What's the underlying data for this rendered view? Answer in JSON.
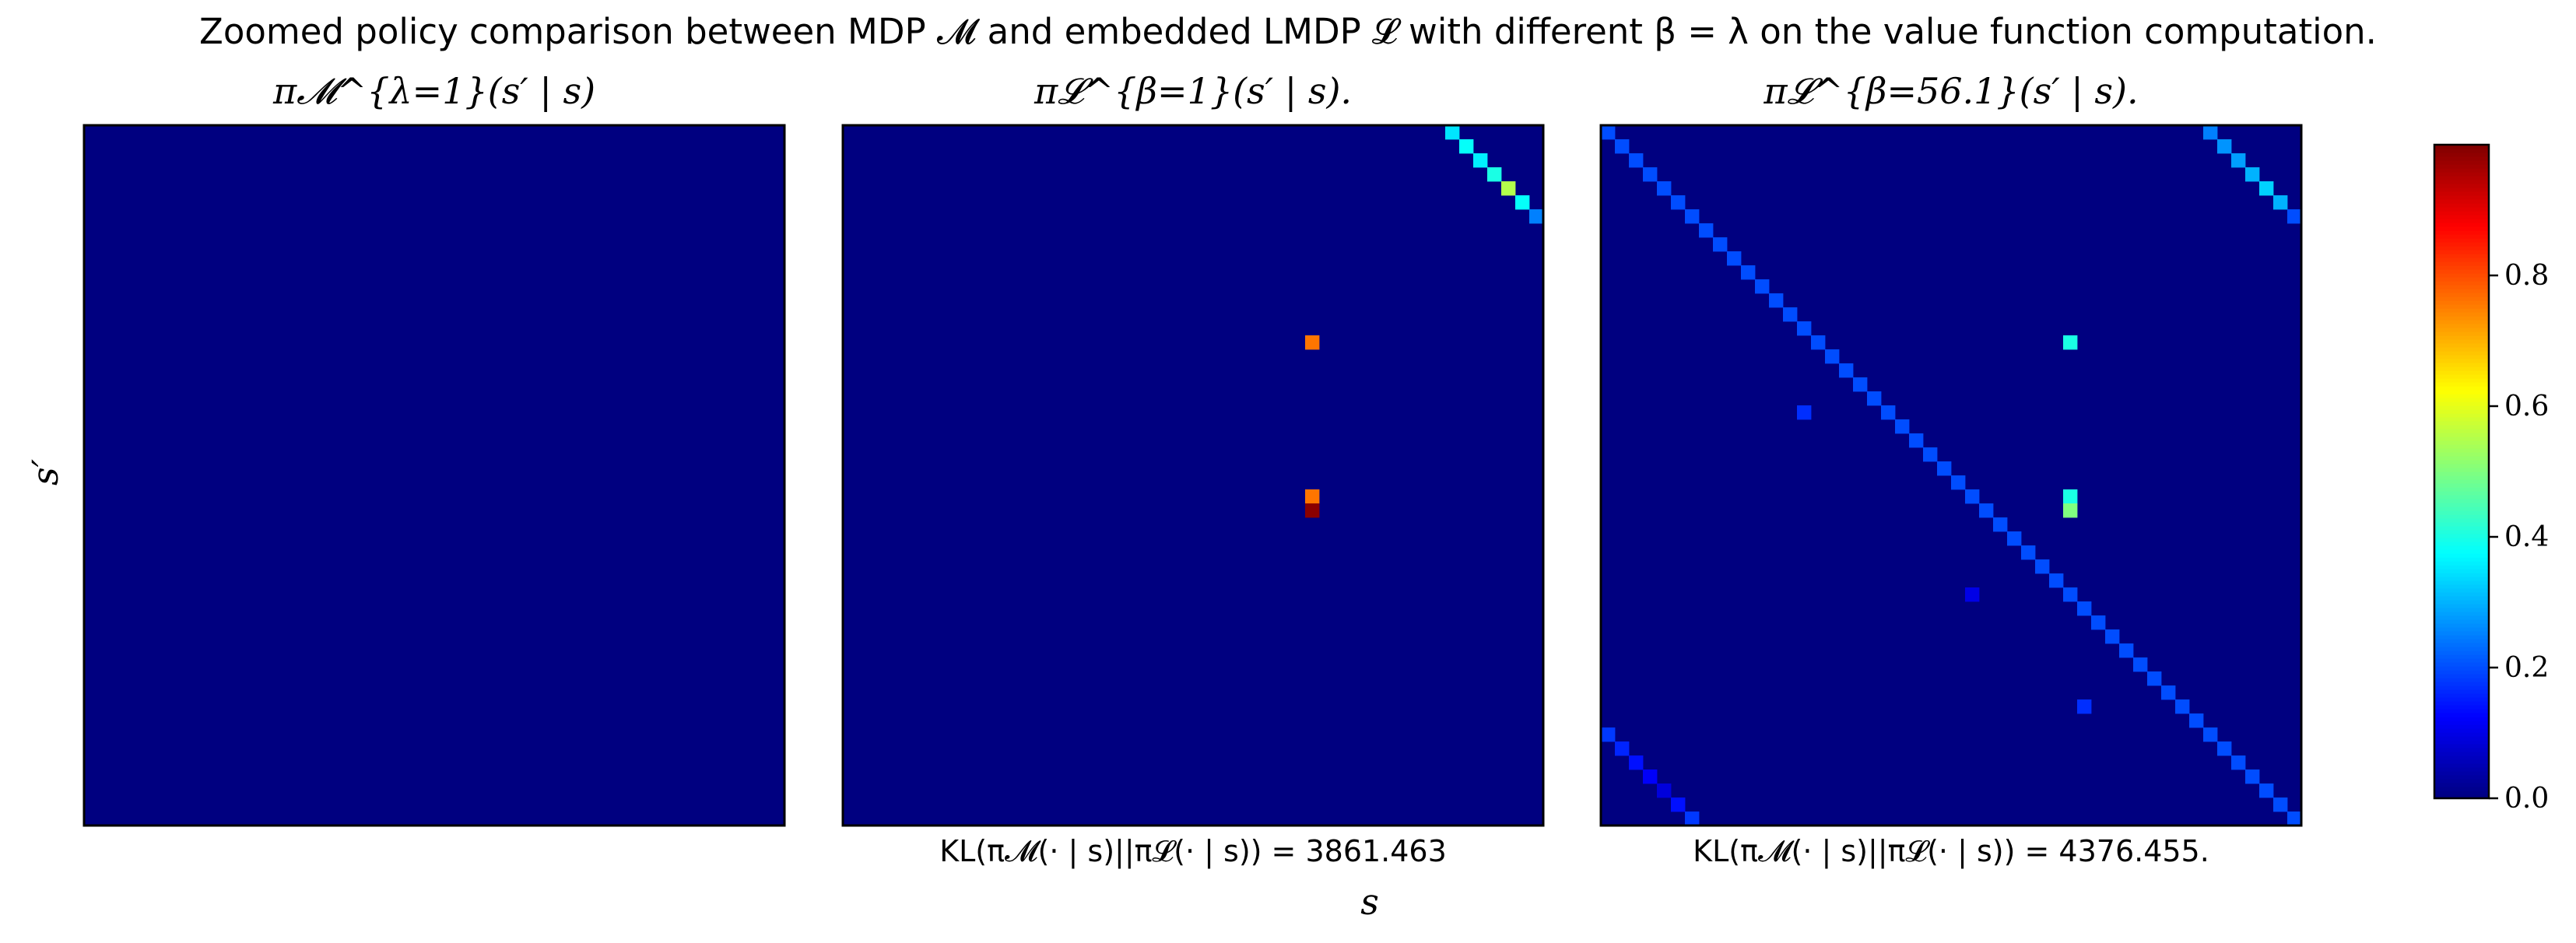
{
  "figure": {
    "title": "Zoomed policy comparison between MDP 𝓜 and embedded LMDP 𝓛 with different β = λ on the value function computation.",
    "xlabel": "s",
    "ylabel": "s′"
  },
  "colors": {
    "background_low": "#00007f",
    "frame": "#000000"
  },
  "chart_data": [
    {
      "type": "heatmap",
      "title": "π𝓜^{λ=1}(s′ | s)",
      "grid_size": 50,
      "annotation": "",
      "cells": []
    },
    {
      "type": "heatmap",
      "title": "π𝓛^{β=1}(s′ | s).",
      "grid_size": 50,
      "annotation": "KL(π𝓜(· | s)||π𝓛(· | s)) = 3861.463",
      "cells": [
        {
          "s": 43,
          "s_prime": 0,
          "value": 0.35
        },
        {
          "s": 44,
          "s_prime": 1,
          "value": 0.38
        },
        {
          "s": 45,
          "s_prime": 2,
          "value": 0.36
        },
        {
          "s": 46,
          "s_prime": 3,
          "value": 0.4
        },
        {
          "s": 47,
          "s_prime": 4,
          "value": 0.55
        },
        {
          "s": 48,
          "s_prime": 5,
          "value": 0.38
        },
        {
          "s": 49,
          "s_prime": 6,
          "value": 0.25
        },
        {
          "s": 33,
          "s_prime": 15,
          "value": 0.76
        },
        {
          "s": 33,
          "s_prime": 26,
          "value": 0.76
        },
        {
          "s": 33,
          "s_prime": 27,
          "value": 0.99
        }
      ]
    },
    {
      "type": "heatmap",
      "title": "π𝓛^{β=56.1}(s′ | s).",
      "grid_size": 50,
      "annotation": "KL(π𝓜(· | s)||π𝓛(· | s)) = 4376.455.",
      "diagonal": {
        "value": 0.2,
        "from": 0,
        "to": 49
      },
      "cells": [
        {
          "s": 43,
          "s_prime": 0,
          "value": 0.25
        },
        {
          "s": 44,
          "s_prime": 1,
          "value": 0.27
        },
        {
          "s": 45,
          "s_prime": 2,
          "value": 0.28
        },
        {
          "s": 46,
          "s_prime": 3,
          "value": 0.3
        },
        {
          "s": 47,
          "s_prime": 4,
          "value": 0.33
        },
        {
          "s": 48,
          "s_prime": 5,
          "value": 0.3
        },
        {
          "s": 49,
          "s_prime": 6,
          "value": 0.2
        },
        {
          "s": 33,
          "s_prime": 15,
          "value": 0.4
        },
        {
          "s": 33,
          "s_prime": 26,
          "value": 0.4
        },
        {
          "s": 33,
          "s_prime": 27,
          "value": 0.5
        },
        {
          "s": 14,
          "s_prime": 20,
          "value": 0.17
        },
        {
          "s": 26,
          "s_prime": 33,
          "value": 0.1
        },
        {
          "s": 34,
          "s_prime": 41,
          "value": 0.17
        },
        {
          "s": 0,
          "s_prime": 43,
          "value": 0.18
        },
        {
          "s": 1,
          "s_prime": 44,
          "value": 0.16
        },
        {
          "s": 2,
          "s_prime": 45,
          "value": 0.14
        },
        {
          "s": 3,
          "s_prime": 46,
          "value": 0.12
        },
        {
          "s": 4,
          "s_prime": 47,
          "value": 0.09
        },
        {
          "s": 5,
          "s_prime": 48,
          "value": 0.14
        },
        {
          "s": 6,
          "s_prime": 49,
          "value": 0.18
        }
      ]
    }
  ],
  "colorbar": {
    "range": [
      0.0,
      1.0
    ],
    "ticks": [
      {
        "value": 0.0,
        "label": "0.0"
      },
      {
        "value": 0.2,
        "label": "0.2"
      },
      {
        "value": 0.4,
        "label": "0.4"
      },
      {
        "value": 0.6,
        "label": "0.6"
      },
      {
        "value": 0.8,
        "label": "0.8"
      }
    ]
  }
}
